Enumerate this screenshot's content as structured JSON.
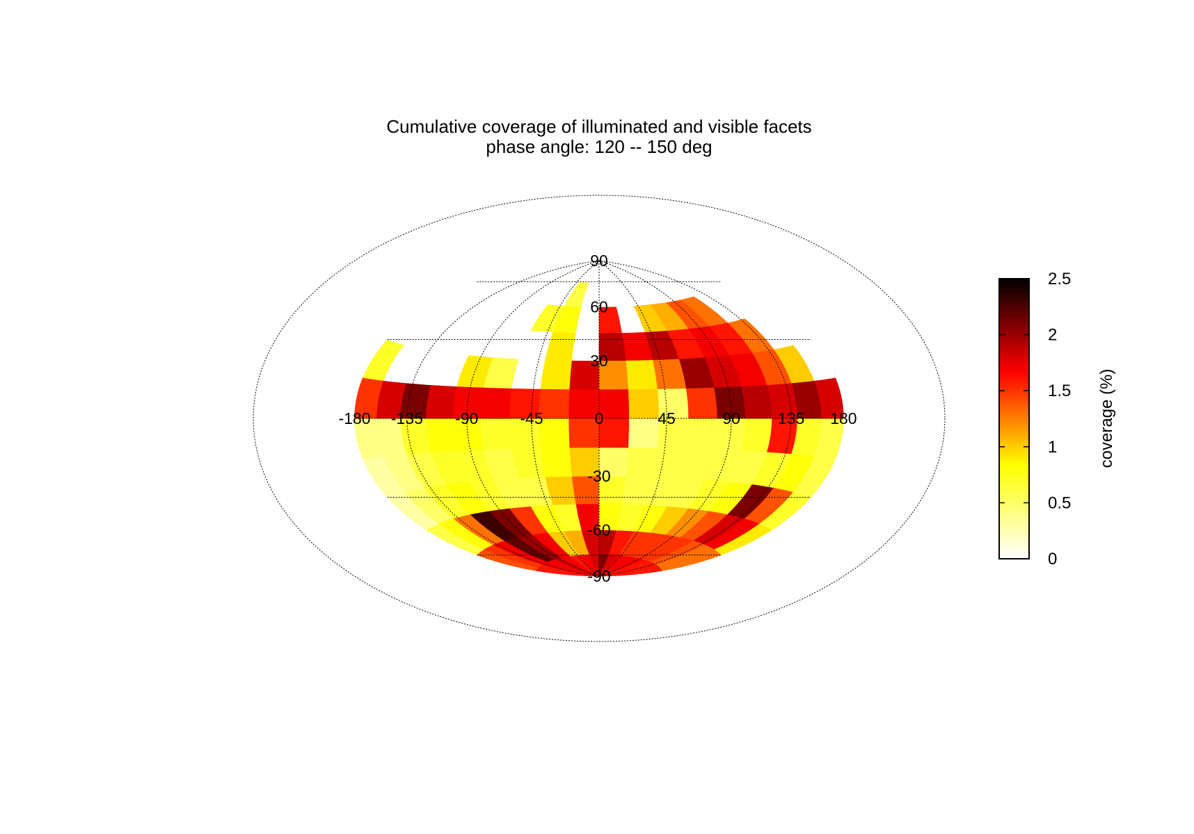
{
  "chart_data": {
    "type": "heatmap",
    "projection": "Hammer equal-area (longitude/latitude)",
    "title": "Cumulative coverage of illuminated and visible facets",
    "subtitle": "phase angle: 120 -- 150 deg",
    "lon_ticks": [
      "-180",
      "-135",
      "-90",
      "-45",
      "0",
      "45",
      "90",
      "135",
      "180"
    ],
    "lat_ticks": [
      "90",
      "60",
      "30",
      "-30",
      "-60",
      "-90"
    ],
    "xlim": [
      -180,
      180
    ],
    "ylim": [
      -90,
      90
    ],
    "grid": true,
    "colorbar": {
      "label": "coverage (%)",
      "range": [
        0,
        2.5
      ],
      "ticks": [
        "0",
        "0.5",
        "1",
        "1.5",
        "2",
        "2.5"
      ],
      "colormap": "hot (reversed)",
      "colors": [
        "#ffffff",
        "#ffff80",
        "#ffff00",
        "#ff8000",
        "#ff0000",
        "#800000",
        "#000000"
      ]
    },
    "lon_bands": [
      -180,
      -160,
      -140,
      -120,
      -100,
      -80,
      -60,
      -40,
      -20,
      0,
      20,
      40,
      60,
      80,
      100,
      120,
      140,
      160,
      180
    ],
    "lat_bands": [
      -90,
      -75,
      -60,
      -45,
      -30,
      -15,
      0,
      15,
      30,
      45,
      60,
      75,
      90
    ],
    "values": [
      [
        1.6,
        1.6,
        1.7,
        1.7,
        1.8,
        1.7,
        1.6,
        1.7,
        1.8,
        2.1,
        1.8,
        1.7,
        1.7,
        1.7,
        1.6,
        1.6,
        1.6,
        1.6
      ],
      [
        1.4,
        1.5,
        1.7,
        2.2,
        2.0,
        1.7,
        1.0,
        1.1,
        1.8,
        1.9,
        1.6,
        1.5,
        1.5,
        1.5,
        1.5,
        1.4,
        1.3,
        1.3
      ],
      [
        0.6,
        0.8,
        1.3,
        2.3,
        2.1,
        1.5,
        0.8,
        0.7,
        1.7,
        0.8,
        0.7,
        0.8,
        1.0,
        1.2,
        1.4,
        1.8,
        1.7,
        0.9
      ],
      [
        0.3,
        0.5,
        0.7,
        0.8,
        0.7,
        0.6,
        0.6,
        1.0,
        1.4,
        0.7,
        0.6,
        0.6,
        0.6,
        0.7,
        0.8,
        2.1,
        1.4,
        0.7
      ],
      [
        0.3,
        0.4,
        0.6,
        0.7,
        0.7,
        0.6,
        0.7,
        0.8,
        1.0,
        0.5,
        0.6,
        0.6,
        0.6,
        0.6,
        0.6,
        0.7,
        0.8,
        0.6
      ],
      [
        0.4,
        0.4,
        0.7,
        0.8,
        0.8,
        0.7,
        0.7,
        0.8,
        1.5,
        1.6,
        0.4,
        0.6,
        0.6,
        0.6,
        0.7,
        1.6,
        0.7,
        0.6
      ],
      [
        1.5,
        1.8,
        2.1,
        1.8,
        1.7,
        1.7,
        1.6,
        1.5,
        1.7,
        1.7,
        1.0,
        0.5,
        1.5,
        2.1,
        1.9,
        1.8,
        2.0,
        1.8
      ],
      [
        0.7,
        0.0,
        0.0,
        0.0,
        0.9,
        0.6,
        0.0,
        0.9,
        1.8,
        1.2,
        0.9,
        1.3,
        2.0,
        1.8,
        1.7,
        1.4,
        1.0,
        0.0
      ],
      [
        0.0,
        0.0,
        0.0,
        0.0,
        0.0,
        0.0,
        0.0,
        0.9,
        0.0,
        1.9,
        1.7,
        1.9,
        1.6,
        1.7,
        1.6,
        1.3,
        0.0,
        0.0
      ],
      [
        0.0,
        0.0,
        0.0,
        0.0,
        0.0,
        0.0,
        0.7,
        0.8,
        0.0,
        1.6,
        0.0,
        1.0,
        1.1,
        1.4,
        1.3,
        0.0,
        0.0,
        0.0
      ],
      [
        0.0,
        0.0,
        0.0,
        0.0,
        0.0,
        0.0,
        0.0,
        0.6,
        0.0,
        0.0,
        0.0,
        0.0,
        0.0,
        0.0,
        0.0,
        0.0,
        0.0,
        0.0
      ],
      [
        0.0,
        0.0,
        0.0,
        0.0,
        0.0,
        0.0,
        0.0,
        0.0,
        0.0,
        0.0,
        0.0,
        0.0,
        0.0,
        0.0,
        0.0,
        0.0,
        0.0,
        0.0
      ]
    ]
  }
}
